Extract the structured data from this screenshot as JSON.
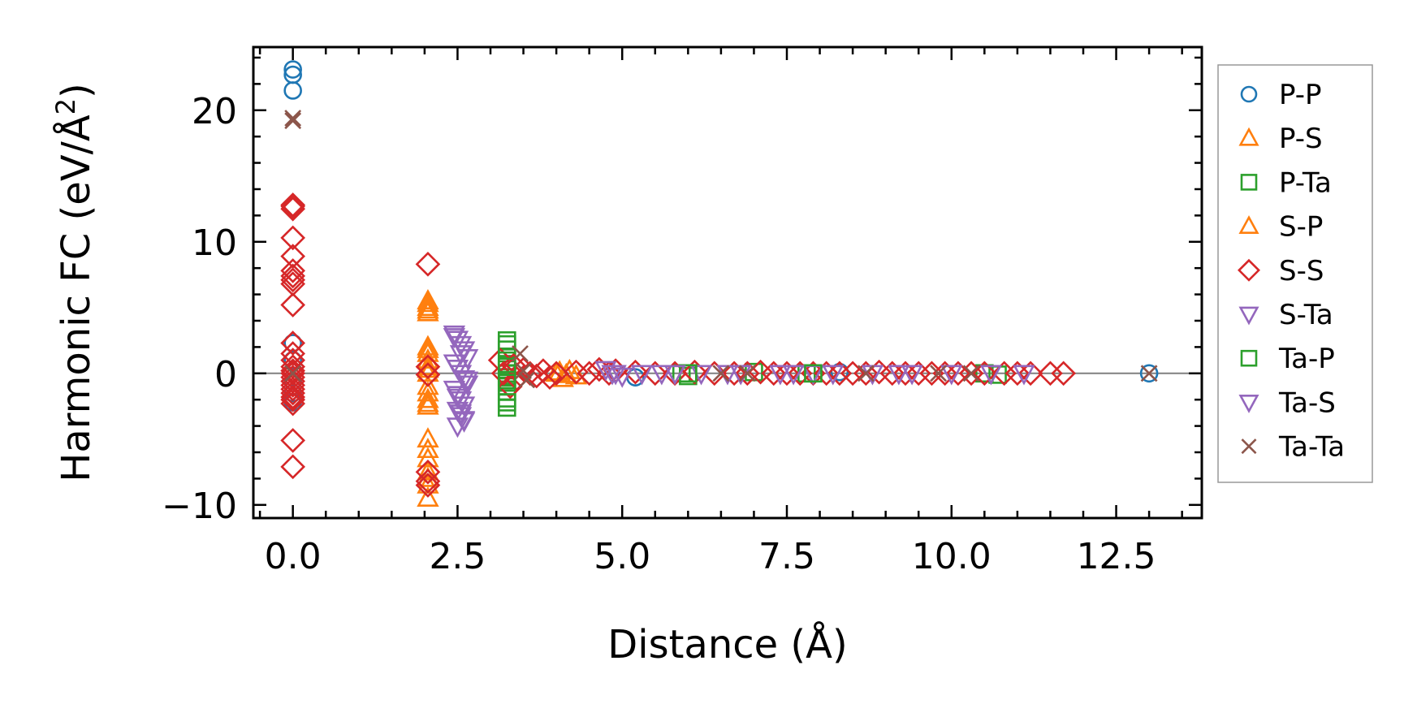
{
  "chart_data": {
    "type": "scatter",
    "xlabel": "Distance (Å)",
    "ylabel_main": "Harmonic FC (eV/Å",
    "ylabel_sup": "2",
    "ylabel_close": ")",
    "xlim": [
      -0.6,
      13.8
    ],
    "ylim": [
      -11.0,
      24.8
    ],
    "xticks": [
      0.0,
      2.5,
      5.0,
      7.5,
      10.0,
      12.5
    ],
    "xtick_labels": [
      "0.0",
      "2.5",
      "5.0",
      "7.5",
      "10.0",
      "12.5"
    ],
    "yticks": [
      -10,
      0,
      10,
      20
    ],
    "ytick_labels": [
      "−10",
      "0",
      "10",
      "20"
    ],
    "zero_line": true,
    "legend_position": "right",
    "series": [
      {
        "name": "P-P",
        "marker": "circle",
        "color": "#1f77b4",
        "filled": false,
        "x": [
          0,
          0,
          0,
          0,
          0,
          0,
          0,
          0,
          5.2,
          8.3,
          13.0
        ],
        "y": [
          23.1,
          22.7,
          21.5,
          2.3,
          1.0,
          -0.6,
          -1.5,
          -2.2,
          -0.3,
          0.1,
          0.0
        ]
      },
      {
        "name": "P-S",
        "marker": "triangle-up",
        "color": "#ff7f0e",
        "filled": false,
        "x": [
          2.05,
          2.05,
          2.05,
          2.05,
          2.05,
          2.05,
          2.05,
          2.05,
          2.05,
          2.05,
          2.05,
          2.05,
          2.05,
          2.05,
          2.05,
          2.05,
          2.05,
          2.05,
          4.0,
          4.1,
          4.2,
          4.3
        ],
        "y": [
          5.5,
          5.0,
          4.6,
          2.0,
          1.5,
          1.0,
          0.5,
          0.0,
          -1.0,
          -1.5,
          -2.0,
          -2.5,
          -5.0,
          -5.8,
          -6.5,
          -7.5,
          -8.5,
          -9.5,
          0.0,
          -0.4,
          0.2,
          -0.2
        ]
      },
      {
        "name": "P-Ta",
        "marker": "square",
        "color": "#2ca02c",
        "filled": false,
        "x": [
          3.25,
          3.25,
          3.25,
          3.25,
          3.25,
          3.25,
          3.25,
          3.25,
          3.25,
          3.25,
          3.25,
          3.25,
          5.9,
          6.0,
          7.0,
          7.8,
          10.5,
          10.7
        ],
        "y": [
          2.5,
          1.8,
          1.2,
          0.7,
          0.3,
          0.0,
          -0.3,
          -0.7,
          -1.0,
          -1.4,
          -1.9,
          -2.6,
          0.0,
          -0.2,
          0.1,
          0.0,
          0.0,
          -0.1
        ]
      },
      {
        "name": "S-P",
        "marker": "triangle-up",
        "color": "#ff7f0e",
        "filled": false,
        "x": [
          2.05,
          2.05,
          2.05,
          2.05,
          2.05,
          2.05,
          4.05,
          4.15
        ],
        "y": [
          5.3,
          4.8,
          1.8,
          0.3,
          -2.3,
          -8.0,
          0.1,
          -0.1
        ]
      },
      {
        "name": "S-S",
        "marker": "diamond",
        "color": "#d62728",
        "filled": false,
        "x": [
          0,
          0,
          0,
          0,
          0,
          0,
          0,
          0,
          0,
          0,
          0,
          0,
          0,
          0,
          0,
          0,
          0,
          0,
          0,
          0,
          0,
          0,
          0,
          0,
          0,
          0,
          2.05,
          2.05,
          2.05,
          2.05,
          2.05,
          2.05,
          3.15,
          3.2,
          3.3,
          3.35,
          3.4,
          3.5,
          3.6,
          3.7,
          3.8,
          3.9,
          4.0,
          4.3,
          4.5,
          4.65,
          4.8,
          4.9,
          5.2,
          5.5,
          5.8,
          6.1,
          6.4,
          6.7,
          6.9,
          7.1,
          7.3,
          7.5,
          7.7,
          7.9,
          8.1,
          8.3,
          8.5,
          8.7,
          8.9,
          9.1,
          9.3,
          9.5,
          9.7,
          9.9,
          10.1,
          10.3,
          10.5,
          10.8,
          11.0,
          11.2,
          11.5,
          11.7
        ],
        "y": [
          12.8,
          12.7,
          12.5,
          10.3,
          8.9,
          7.8,
          7.4,
          7.1,
          6.8,
          5.2,
          2.3,
          1.5,
          1.0,
          0.5,
          0.0,
          -0.3,
          -0.6,
          -0.9,
          -1.2,
          -1.5,
          -1.8,
          -2.0,
          -2.3,
          -5.1,
          -7.1,
          0.2,
          8.3,
          0.5,
          -0.1,
          -7.5,
          -8.2,
          -8.5,
          1.0,
          0.0,
          -1.0,
          0.6,
          -0.4,
          0.3,
          0.0,
          -0.2,
          0.2,
          -0.3,
          0.0,
          0.1,
          0.0,
          0.3,
          0.0,
          0.2,
          0.1,
          0.0,
          0.0,
          0.1,
          0.0,
          0.0,
          0.0,
          0.1,
          0.0,
          0.0,
          0.0,
          0.0,
          0.0,
          0.0,
          0.0,
          0.0,
          0.1,
          0.0,
          0.0,
          0.0,
          0.0,
          0.0,
          0.0,
          0.0,
          0.0,
          0.0,
          0.0,
          0.0,
          0.0,
          0.0
        ]
      },
      {
        "name": "S-Ta",
        "marker": "triangle-down",
        "color": "#9467bd",
        "filled": false,
        "x": [
          2.45,
          2.5,
          2.55,
          2.6,
          2.65,
          2.45,
          2.5,
          2.55,
          2.6,
          2.65,
          2.45,
          2.5,
          2.55,
          2.6,
          2.5,
          2.55,
          2.6,
          2.5,
          2.55,
          4.75,
          4.85,
          5.0,
          5.3,
          5.6,
          6.2,
          6.6,
          7.4,
          7.9,
          8.8,
          9.2,
          10.0
        ],
        "y": [
          3.0,
          2.6,
          2.2,
          1.8,
          1.2,
          0.8,
          0.4,
          0.0,
          -0.4,
          -0.8,
          -1.2,
          -1.6,
          -2.0,
          -2.4,
          -2.8,
          -3.2,
          -3.6,
          -4.0,
          -3.0,
          0.3,
          0.0,
          -0.2,
          0.0,
          0.0,
          0.0,
          0.0,
          0.0,
          0.0,
          0.0,
          0.0,
          0.0
        ]
      },
      {
        "name": "Ta-P",
        "marker": "square",
        "color": "#2ca02c",
        "filled": false,
        "x": [
          3.25,
          3.25,
          3.25,
          3.25,
          6.0,
          7.9
        ],
        "y": [
          2.2,
          0.5,
          -0.5,
          -2.2,
          0.0,
          0.0
        ]
      },
      {
        "name": "Ta-S",
        "marker": "triangle-down",
        "color": "#9467bd",
        "filled": false,
        "x": [
          2.45,
          2.55,
          2.65,
          2.5,
          2.6,
          4.9,
          5.8,
          6.8,
          7.6,
          8.2,
          9.4,
          10.6,
          11.1
        ],
        "y": [
          2.8,
          1.5,
          -0.5,
          -1.8,
          -3.5,
          0.0,
          0.0,
          0.0,
          0.0,
          0.0,
          0.0,
          0.0,
          0.0
        ]
      },
      {
        "name": "Ta-Ta",
        "marker": "x",
        "color": "#8c564b",
        "filled": false,
        "x": [
          0,
          0,
          0,
          3.45,
          3.5,
          3.55,
          6.5,
          6.9,
          8.7,
          9.8,
          10.3,
          13.0
        ],
        "y": [
          19.4,
          19.2,
          0.0,
          1.5,
          0.2,
          -0.5,
          0.0,
          0.0,
          0.0,
          0.0,
          0.0,
          0.0
        ]
      }
    ]
  }
}
